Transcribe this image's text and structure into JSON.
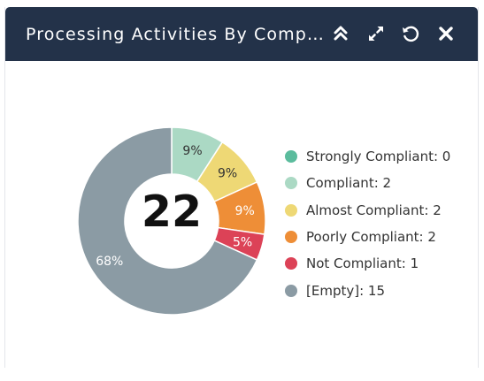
{
  "widget": {
    "title": "Processing Activities By Compl..."
  },
  "header_buttons": [
    {
      "name": "collapse-button",
      "icon": "double-chevron-up-icon"
    },
    {
      "name": "expand-button",
      "icon": "expand-arrows-icon"
    },
    {
      "name": "refresh-button",
      "icon": "refresh-icon"
    },
    {
      "name": "close-button",
      "icon": "close-icon"
    }
  ],
  "chart_data": {
    "type": "pie",
    "donut": true,
    "center_total": "22",
    "slices": [
      {
        "label": "Strongly Compliant",
        "value": 0,
        "color": "#5bbc9d",
        "pct_label": ""
      },
      {
        "label": "Compliant",
        "value": 2,
        "color": "#abd9c4",
        "pct_label": "9%"
      },
      {
        "label": "Almost Compliant",
        "value": 2,
        "color": "#eed875",
        "pct_label": "9%"
      },
      {
        "label": "Poorly Compliant",
        "value": 2,
        "color": "#ee8e37",
        "pct_label": "9%"
      },
      {
        "label": "Not Compliant",
        "value": 1,
        "color": "#dc4257",
        "pct_label": "5%"
      },
      {
        "label": "[Empty]",
        "value": 15,
        "color": "#8b9ba4",
        "pct_label": "68%"
      }
    ],
    "legend_position": "right"
  },
  "legend": {
    "items": [
      "Strongly Compliant: 0",
      "Compliant: 2",
      "Almost Compliant: 2",
      "Poorly Compliant: 2",
      "Not Compliant: 1",
      "[Empty]: 15"
    ]
  }
}
